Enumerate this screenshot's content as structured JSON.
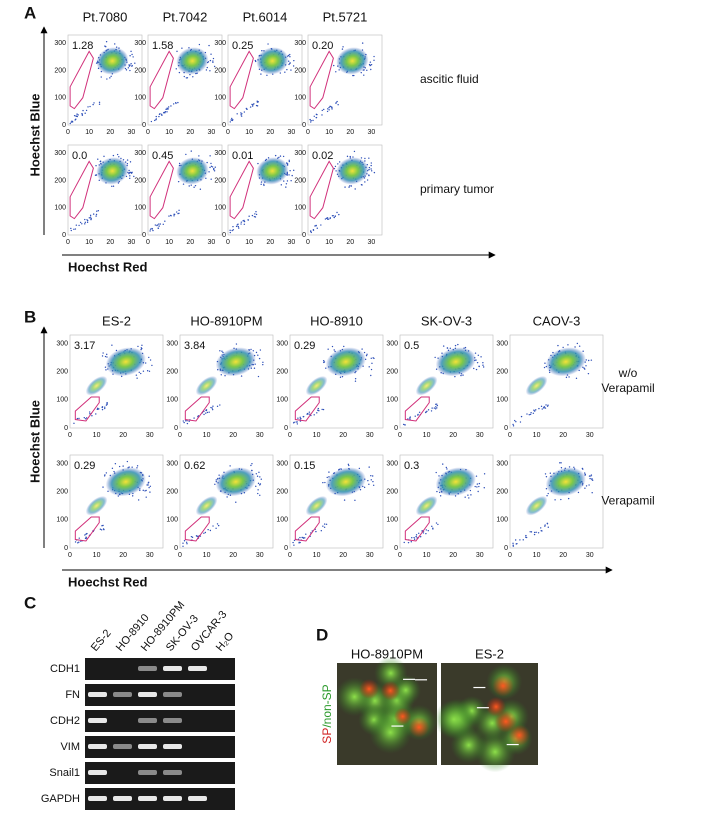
{
  "x_ticks": [
    0,
    10,
    20,
    30
  ],
  "y_ticks": [
    0,
    100,
    200,
    300
  ],
  "panels": [
    {
      "letter": "A",
      "y_label": "Hoechst Blue",
      "x_label": "Hoechst Red",
      "samples": [
        "Pt.7080",
        "Pt.7042",
        "Pt.6014",
        "Pt.5721"
      ],
      "conditions": [
        {
          "label": "ascitic fluid",
          "values": [
            "1.28",
            "1.58",
            "0.25",
            "0.20"
          ]
        },
        {
          "label": "primary tumor",
          "values": [
            "0.0",
            "0.45",
            "0.01",
            "0.02"
          ]
        }
      ]
    },
    {
      "letter": "B",
      "y_label": "Hoechst Blue",
      "x_label": "Hoechst Red",
      "samples": [
        "ES-2",
        "HO-8910PM",
        "HO-8910",
        "SK-OV-3",
        "CAOV-3"
      ],
      "conditions": [
        {
          "label": [
            "w/o",
            "Verapamil"
          ],
          "values": [
            "3.17",
            "3.84",
            "0.29",
            "0.5",
            null
          ]
        },
        {
          "label": [
            "Verapamil"
          ],
          "values": [
            "0.29",
            "0.62",
            "0.15",
            "0.3",
            null
          ]
        }
      ]
    }
  ],
  "gel": {
    "letter": "C",
    "lanes": [
      "ES-2",
      "HO-8910",
      "HO-8910PM",
      "SK-OV-3",
      "OVCAR-3",
      "H₂O"
    ],
    "genes": [
      "CDH1",
      "FN",
      "CDH2",
      "VIM",
      "Snail1",
      "GAPDH"
    ]
  },
  "micro": {
    "letter": "D",
    "label_sp": "SP",
    "label_nonsp": "/non-SP",
    "images": [
      "HO-8910PM",
      "ES-2"
    ]
  }
}
